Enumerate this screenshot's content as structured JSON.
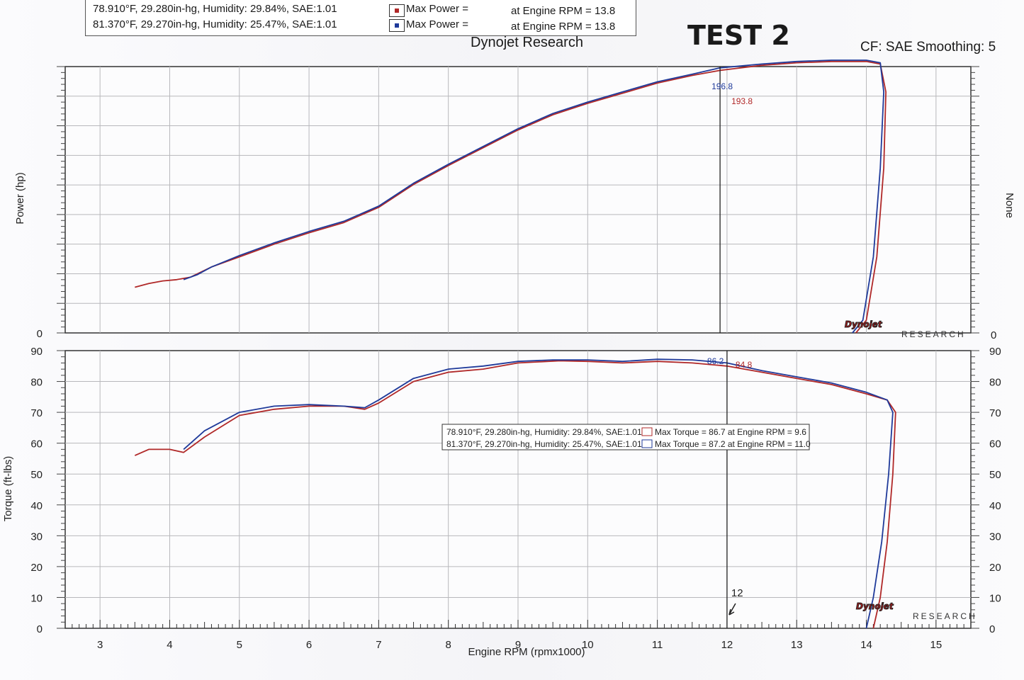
{
  "header": {
    "run1": {
      "text": "78.910°F, 29.280in-hg, Humidity: 29.84%, SAE:1.01",
      "label": "Max Power =",
      "rpm": "at Engine RPM = 13.8",
      "color": "#b02828"
    },
    "run2": {
      "text": "81.370°F, 29.270in-hg, Humidity: 25.47%, SAE:1.01",
      "label": "Max Power =",
      "rpm": "at Engine RPM = 13.8",
      "color": "#1f3a9a"
    },
    "title": "Dynojet Research",
    "test_label": "TEST 2",
    "cf_text": "CF: SAE Smoothing: 5"
  },
  "torque_legend": {
    "run1": {
      "text": "78.910°F, 29.280in-hg, Humidity: 29.84%, SAE:1.01",
      "label": "Max Torque = 86.7 at Engine RPM = 9.6"
    },
    "run2": {
      "text": "81.370°F, 29.270in-hg, Humidity: 25.47%, SAE:1.01",
      "label": "Max Torque = 87.2 at Engine RPM = 11.0"
    }
  },
  "logo_text": "Dynojet",
  "logo_sub": "RESEARCH",
  "chart_data": [
    {
      "type": "line",
      "name": "power",
      "ylabel": "Power (hp)",
      "y2label": "None",
      "y_zero_label": "0",
      "y2_zero_label": "0",
      "xlim": [
        2.5,
        15.5
      ],
      "ylim": [
        0,
        210
      ],
      "cursor_x": 11.9,
      "annotations": [
        {
          "text": "196.8",
          "color": "#1f3a9a"
        },
        {
          "text": "193.8",
          "color": "#b02828"
        }
      ],
      "series": [
        {
          "color": "#b02828",
          "x": [
            3.5,
            3.7,
            3.9,
            4.1,
            4.3,
            4.6,
            5.0,
            5.5,
            6.0,
            6.5,
            7.0,
            7.5,
            8.0,
            8.5,
            9.0,
            9.5,
            10.0,
            10.5,
            11.0,
            11.5,
            11.9,
            12.5,
            13.0,
            13.5,
            14.0,
            14.2,
            14.28,
            14.25,
            14.15,
            14.0,
            13.85
          ],
          "y": [
            36,
            39,
            41,
            42,
            44,
            52,
            60,
            70,
            79,
            87,
            99,
            117,
            132,
            146,
            160,
            172,
            181,
            189,
            197,
            203,
            207,
            211,
            213,
            214,
            214,
            212,
            190,
            130,
            60,
            10,
            0
          ]
        },
        {
          "color": "#1f3a9a",
          "x": [
            4.2,
            4.4,
            4.6,
            5.0,
            5.5,
            6.0,
            6.5,
            7.0,
            7.5,
            8.0,
            8.5,
            9.0,
            9.5,
            10.0,
            10.5,
            11.0,
            11.5,
            11.9,
            12.5,
            13.0,
            13.5,
            14.0,
            14.2,
            14.25,
            14.2,
            14.1,
            13.95,
            13.8
          ],
          "y": [
            42,
            46,
            52,
            61,
            71,
            80,
            88,
            100,
            118,
            133,
            147,
            161,
            173,
            182,
            190,
            198,
            204,
            209,
            212,
            214,
            215,
            215,
            213,
            190,
            130,
            60,
            10,
            0
          ]
        }
      ]
    },
    {
      "type": "line",
      "name": "torque",
      "xlabel": "Engine RPM (rpmx1000)",
      "ylabel": "Torque (ft-lbs)",
      "xlim": [
        2.5,
        15.5
      ],
      "ylim": [
        0,
        90
      ],
      "y2lim": [
        0,
        90
      ],
      "cursor_x": 12,
      "cursor_label": "12",
      "x_ticks": [
        "3",
        "4",
        "5",
        "6",
        "7",
        "8",
        "9",
        "10",
        "11",
        "12",
        "13",
        "14",
        "15"
      ],
      "y_ticks": [
        "0",
        "10",
        "20",
        "30",
        "40",
        "50",
        "60",
        "70",
        "80",
        "90"
      ],
      "y2_ticks": [
        "0",
        "10",
        "20",
        "30",
        "40",
        "50",
        "60",
        "70",
        "80",
        "90"
      ],
      "annotations": [
        {
          "text": "86.2",
          "color": "#1f3a9a"
        },
        {
          "text": "84.8",
          "color": "#b02828"
        }
      ],
      "series": [
        {
          "color": "#b02828",
          "x": [
            3.5,
            3.7,
            4.0,
            4.2,
            4.5,
            5.0,
            5.5,
            6.0,
            6.5,
            6.8,
            7.0,
            7.5,
            8.0,
            8.5,
            9.0,
            9.6,
            10.0,
            10.5,
            11.0,
            11.5,
            12.0,
            12.5,
            13.0,
            13.5,
            14.0,
            14.3,
            14.42,
            14.38,
            14.3,
            14.2,
            14.1
          ],
          "y": [
            56,
            58,
            58,
            57,
            62,
            69,
            71,
            72,
            72,
            71,
            73,
            80,
            83,
            84,
            86,
            86.7,
            86.5,
            86,
            86.5,
            86,
            85,
            83,
            81,
            79,
            76,
            74,
            70,
            50,
            28,
            10,
            0
          ]
        },
        {
          "color": "#1f3a9a",
          "x": [
            4.2,
            4.5,
            5.0,
            5.5,
            6.0,
            6.5,
            6.8,
            7.0,
            7.5,
            8.0,
            8.5,
            9.0,
            9.5,
            10.0,
            10.5,
            11.0,
            11.5,
            12.0,
            12.5,
            13.0,
            13.5,
            14.0,
            14.3,
            14.38,
            14.32,
            14.22,
            14.1,
            14.0
          ],
          "y": [
            58,
            64,
            70,
            72,
            72.5,
            72,
            71.5,
            74,
            81,
            84,
            85,
            86.5,
            87,
            87,
            86.5,
            87.2,
            87,
            86,
            83.5,
            81.5,
            79.5,
            76.5,
            74,
            70,
            50,
            28,
            10,
            0
          ]
        }
      ]
    }
  ]
}
